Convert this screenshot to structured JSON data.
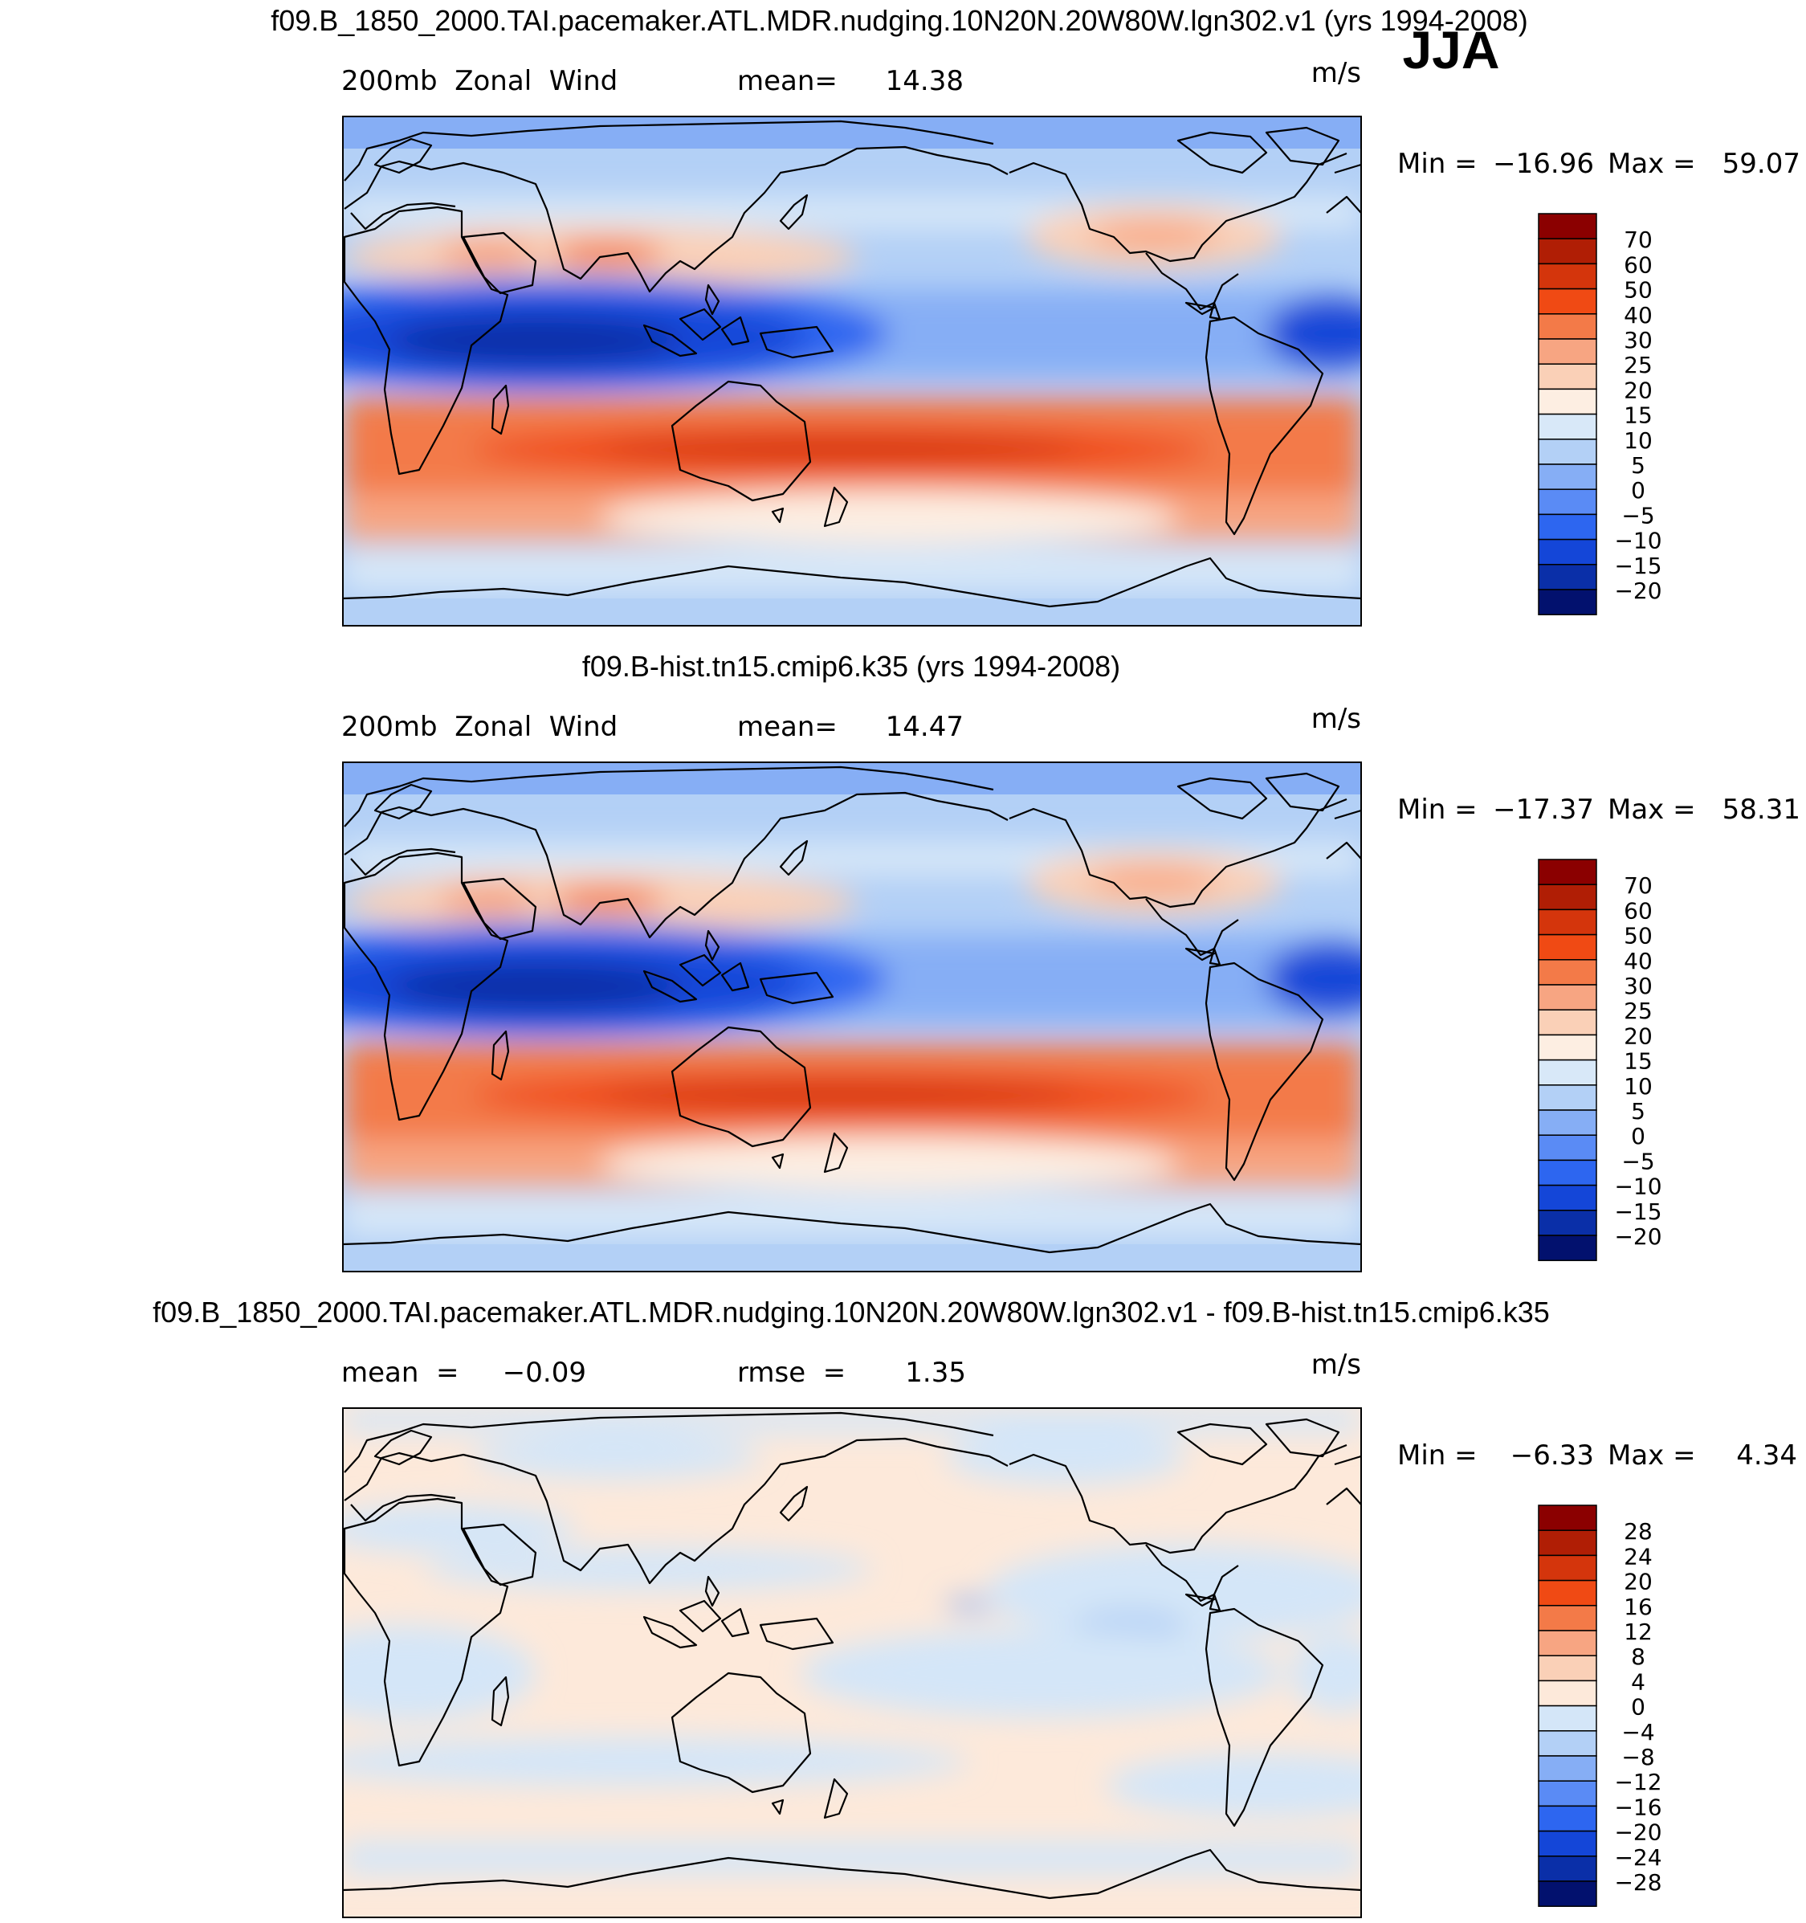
{
  "season": "JJA",
  "panels": [
    {
      "title": "f09.B_1850_2000.TAI.pacemaker.ATL.MDR.nudging.10N20N.20W80W.lgn302.v1 (yrs 1994-2008)",
      "left_label": "200mb  Zonal  Wind",
      "stat1_label": "mean=",
      "stat1_value": "14.38",
      "units": "m/s",
      "min_label": "Min =",
      "min_value": "−16.96",
      "max_label": "Max =",
      "max_value": "59.07",
      "colorbar_labels": [
        "70",
        "60",
        "50",
        "40",
        "30",
        "25",
        "20",
        "15",
        "10",
        "5",
        "0",
        "−5",
        "−10",
        "−15",
        "−20"
      ]
    },
    {
      "title": "f09.B-hist.tn15.cmip6.k35 (yrs 1994-2008)",
      "left_label": "200mb  Zonal  Wind",
      "stat1_label": "mean=",
      "stat1_value": "14.47",
      "units": "m/s",
      "min_label": "Min =",
      "min_value": "−17.37",
      "max_label": "Max =",
      "max_value": "58.31",
      "colorbar_labels": [
        "70",
        "60",
        "50",
        "40",
        "30",
        "25",
        "20",
        "15",
        "10",
        "5",
        "0",
        "−5",
        "−10",
        "−15",
        "−20"
      ]
    },
    {
      "title": "f09.B_1850_2000.TAI.pacemaker.ATL.MDR.nudging.10N20N.20W80W.lgn302.v1 - f09.B-hist.tn15.cmip6.k35",
      "left_label": "mean  =",
      "left_value": "−0.09",
      "stat1_label": "rmse  =",
      "stat1_value": "1.35",
      "units": "m/s",
      "min_label": "Min =",
      "min_value": "−6.33",
      "max_label": "Max =",
      "max_value": "4.34",
      "colorbar_labels": [
        "28",
        "24",
        "20",
        "16",
        "12",
        "8",
        "4",
        "0",
        "−4",
        "−8",
        "−12",
        "−16",
        "−20",
        "−24",
        "−28"
      ]
    }
  ],
  "colors": {
    "colorbar": [
      "#8b0000",
      "#b01e05",
      "#d4350c",
      "#f04a14",
      "#f37a48",
      "#f7a582",
      "#fad0b7",
      "#fdeee2",
      "#d8e8f8",
      "#b3d0f6",
      "#86aef5",
      "#5a8bf5",
      "#2d66f0",
      "#1446d8",
      "#0a2fa8",
      "#02116e"
    ],
    "diff_colorbar": [
      "#8b0000",
      "#b01e05",
      "#d4350c",
      "#f04a14",
      "#f37a48",
      "#f7a582",
      "#fad0b7",
      "#fde9da",
      "#d4e6f8",
      "#b3d0f6",
      "#86aef5",
      "#5a8bf5",
      "#2d66f0",
      "#1446d8",
      "#0a2fa8",
      "#02116e"
    ]
  }
}
